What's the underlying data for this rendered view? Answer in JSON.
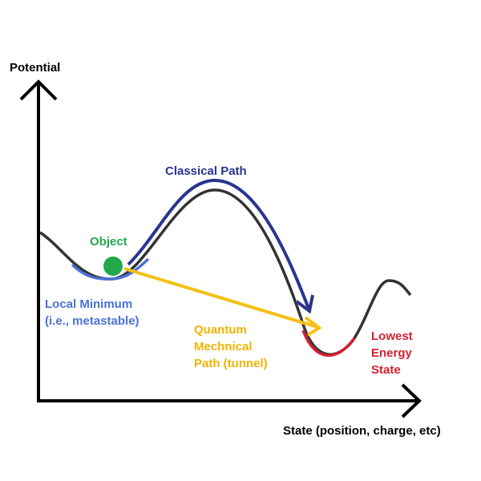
{
  "axes": {
    "y_label": "Potential",
    "x_label": "State (position, charge, etc)"
  },
  "labels": {
    "classical_path": "Classical Path",
    "object": "Object",
    "local_minimum": [
      "Local Minimum",
      "(i.e., metastable)"
    ],
    "quantum_path": [
      "Quantum",
      "Mechnical",
      "Path (tunnel)"
    ],
    "lowest_energy": [
      "Lowest",
      "Energy",
      "State"
    ]
  }
}
